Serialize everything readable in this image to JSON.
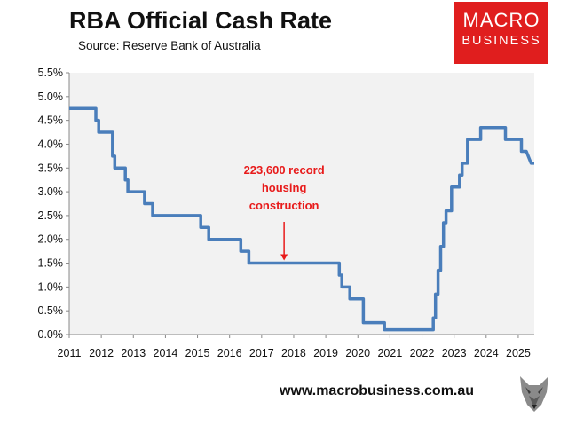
{
  "header": {
    "title": "RBA Official Cash Rate",
    "source": "Source: Reserve Bank of Australia"
  },
  "logo": {
    "line1": "MACRO",
    "line2": "BUSINESS"
  },
  "footer": {
    "url": "www.macrobusiness.com.au"
  },
  "colors": {
    "line": "#4a7ebb",
    "plot_bg": "#f2f2f2",
    "annotation": "#e81b1b",
    "logo_bg": "#e01e1e"
  },
  "chart_data": {
    "type": "line",
    "title": "RBA Official Cash Rate",
    "xlabel": "",
    "ylabel": "",
    "xlim": [
      2011,
      2025.5
    ],
    "ylim": [
      0,
      5.5
    ],
    "x_ticks": [
      "2011",
      "2012",
      "2013",
      "2014",
      "2015",
      "2016",
      "2017",
      "2018",
      "2019",
      "2020",
      "2021",
      "2022",
      "2023",
      "2024",
      "2025"
    ],
    "y_ticks": [
      "0.0%",
      "0.5%",
      "1.0%",
      "1.5%",
      "2.0%",
      "2.5%",
      "3.0%",
      "3.5%",
      "4.0%",
      "4.5%",
      "5.0%",
      "5.5%"
    ],
    "grid": false,
    "series": [
      {
        "x": [
          2011.0,
          2011.83,
          2011.83,
          2011.92,
          2011.92,
          2012.35,
          2012.35,
          2012.42,
          2012.42,
          2012.75,
          2012.75,
          2012.83,
          2012.83,
          2013.35,
          2013.35,
          2013.6,
          2013.6,
          2015.1,
          2015.1,
          2015.35,
          2015.35,
          2016.35,
          2016.35,
          2016.6,
          2016.6,
          2019.42,
          2019.42,
          2019.5,
          2019.5,
          2019.75,
          2019.75,
          2020.17,
          2020.17,
          2020.83,
          2020.83,
          2022.35,
          2022.35,
          2022.42,
          2022.42,
          2022.5,
          2022.5,
          2022.58,
          2022.58,
          2022.67,
          2022.67,
          2022.75,
          2022.75,
          2022.92,
          2022.92,
          2023.17,
          2023.17,
          2023.25,
          2023.25,
          2023.42,
          2023.42,
          2023.83,
          2023.83,
          2024.6,
          2024.6,
          2024.7,
          2024.7,
          2025.1,
          2025.1,
          2025.25,
          2025.25,
          2025.4,
          2025.5
        ],
        "y": [
          4.75,
          4.75,
          4.5,
          4.5,
          4.25,
          4.25,
          3.75,
          3.75,
          3.5,
          3.5,
          3.25,
          3.25,
          3.0,
          3.0,
          2.75,
          2.75,
          2.5,
          2.5,
          2.25,
          2.25,
          2.0,
          2.0,
          1.75,
          1.75,
          1.5,
          1.5,
          1.25,
          1.25,
          1.0,
          1.0,
          0.75,
          0.75,
          0.25,
          0.25,
          0.1,
          0.1,
          0.35,
          0.35,
          0.85,
          0.85,
          1.35,
          1.35,
          1.85,
          1.85,
          2.35,
          2.35,
          2.6,
          2.6,
          3.1,
          3.1,
          3.35,
          3.35,
          3.6,
          3.6,
          4.1,
          4.1,
          4.35,
          4.35,
          4.1,
          4.1,
          4.1,
          4.1,
          3.85,
          3.85,
          3.85,
          3.6,
          3.6
        ]
      }
    ],
    "annotations": [
      {
        "lines": [
          "223,600 record",
          "housing",
          "construction"
        ],
        "x": 2017.7,
        "y": 1.5
      }
    ]
  }
}
